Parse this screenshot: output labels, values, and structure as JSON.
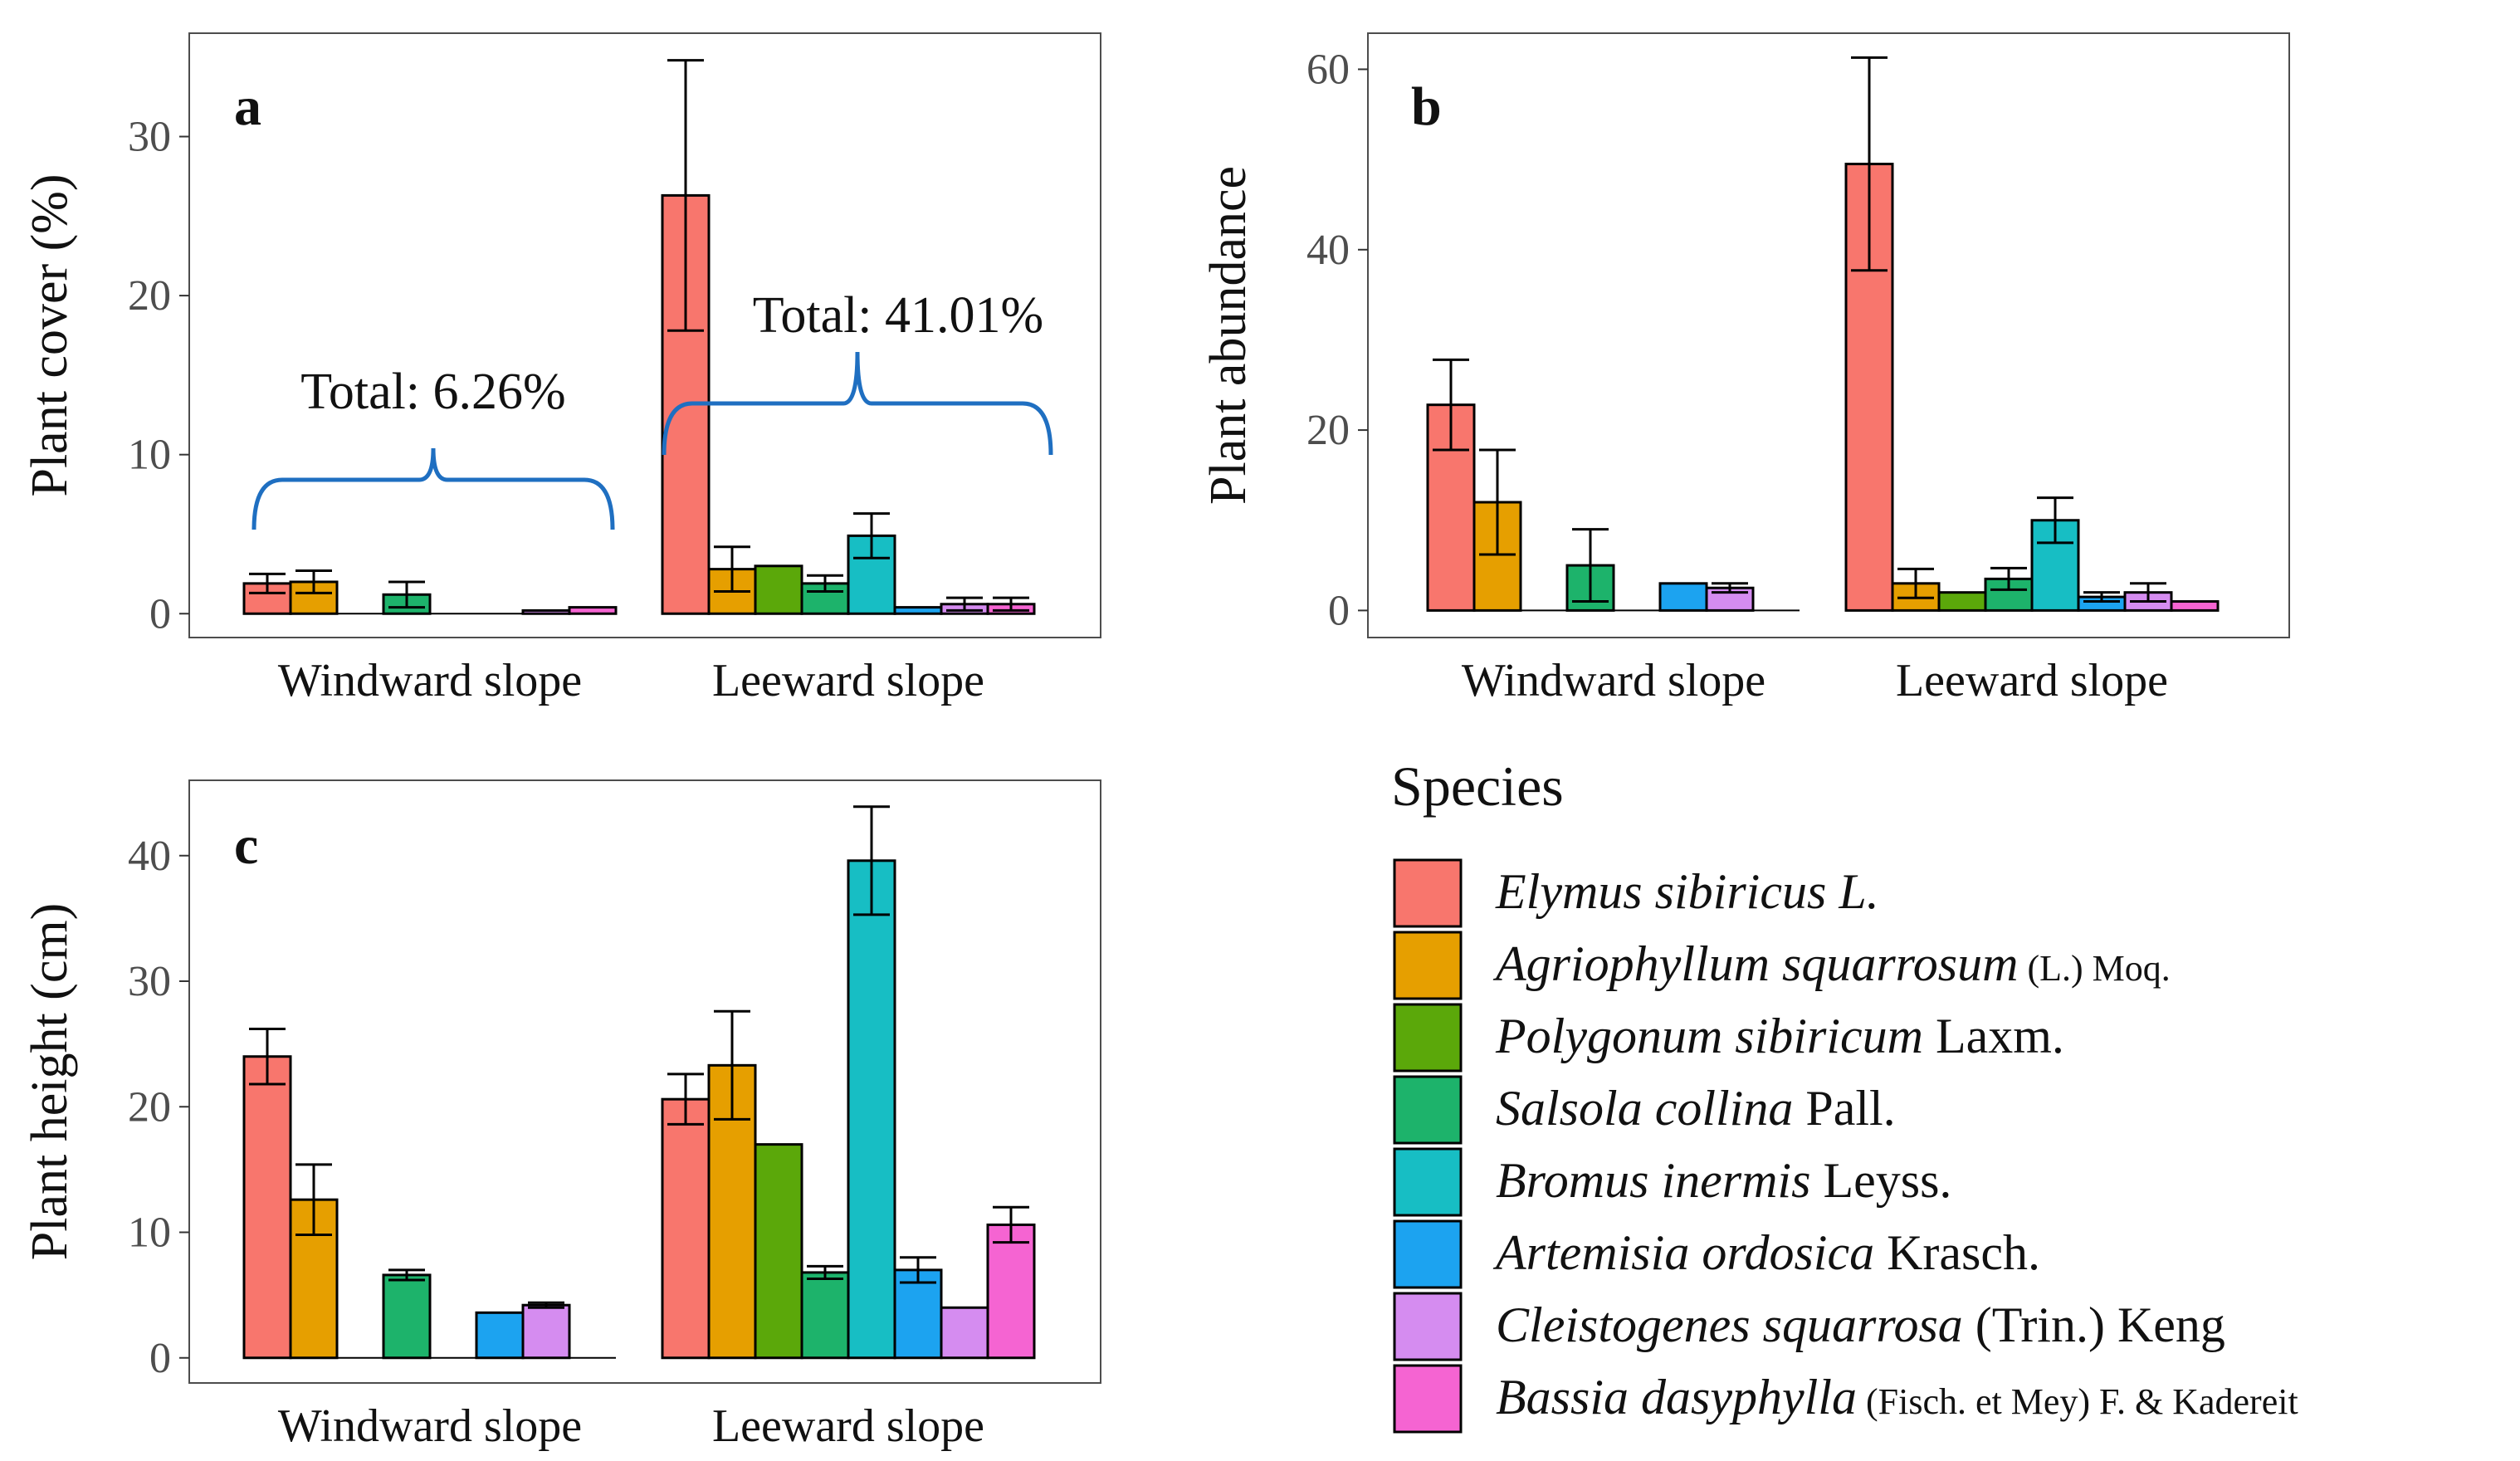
{
  "species": [
    {
      "italic": "Elymus sibiricus L.",
      "rest": "",
      "rest_small": false,
      "color": "#F8766D"
    },
    {
      "italic": "Agriophyllum squarrosum",
      "rest": " (L.) Moq.",
      "rest_small": true,
      "color": "#E69F00"
    },
    {
      "italic": "Polygonum sibiricum",
      "rest": " Laxm.",
      "rest_small": false,
      "color": "#5BA80A"
    },
    {
      "italic": "Salsola collina",
      "rest": " Pall.",
      "rest_small": false,
      "color": "#1DB36B"
    },
    {
      "italic": "Bromus inermis",
      "rest": " Leyss.",
      "rest_small": false,
      "color": "#17BEC4"
    },
    {
      "italic": "Artemisia ordosica",
      "rest": " Krasch.",
      "rest_small": false,
      "color": "#1CA3F0"
    },
    {
      "italic": "Cleistogenes squarrosa",
      "rest": " (Trin.) Keng",
      "rest_small": false,
      "color": "#D58CF0"
    },
    {
      "italic": "Bassia dasyphylla",
      "rest": " (Fisch. et Mey) F. & Kadereit",
      "rest_small": true,
      "color": "#F564D2"
    }
  ],
  "legend": {
    "title": "Species"
  },
  "chart_data": [
    {
      "panel": "a",
      "type": "bar",
      "ylabel": "Plant cover (%)",
      "ylim": [
        -1.5,
        36.5
      ],
      "yticks": [
        0,
        10,
        20,
        30
      ],
      "categories": [
        "Windward slope",
        "Leeward slope"
      ],
      "series": [
        {
          "values": [
            1.9,
            26.3
          ],
          "err": [
            0.6,
            8.5
          ]
        },
        {
          "values": [
            2.0,
            2.8
          ],
          "err": [
            0.7,
            1.4
          ]
        },
        {
          "values": [
            0,
            3.0
          ],
          "err": [
            0,
            0
          ]
        },
        {
          "values": [
            1.2,
            1.9
          ],
          "err": [
            0.8,
            0.5
          ]
        },
        {
          "values": [
            0,
            4.9
          ],
          "err": [
            0,
            1.4
          ]
        },
        {
          "values": [
            0,
            0.4
          ],
          "err": [
            0,
            0
          ]
        },
        {
          "values": [
            0.2,
            0.6
          ],
          "err": [
            0,
            0.4
          ]
        },
        {
          "values": [
            0.4,
            0.6
          ],
          "err": [
            0,
            0.4
          ]
        }
      ],
      "annotations": [
        "Total: 6.26%",
        "Total: 41.01%"
      ]
    },
    {
      "panel": "b",
      "type": "bar",
      "ylabel": "Plant abundance",
      "ylim": [
        -3,
        64
      ],
      "yticks": [
        0,
        20,
        40,
        60
      ],
      "categories": [
        "Windward slope",
        "Leeward slope"
      ],
      "series": [
        {
          "values": [
            22.8,
            49.5
          ],
          "err": [
            5.0,
            11.8
          ]
        },
        {
          "values": [
            12.0,
            3.0
          ],
          "err": [
            5.8,
            1.6
          ]
        },
        {
          "values": [
            0,
            2.0
          ],
          "err": [
            0,
            0
          ]
        },
        {
          "values": [
            5.0,
            3.5
          ],
          "err": [
            4.0,
            1.2
          ]
        },
        {
          "values": [
            0,
            10.0
          ],
          "err": [
            0,
            2.5
          ]
        },
        {
          "values": [
            3.0,
            1.5
          ],
          "err": [
            0,
            0.5
          ]
        },
        {
          "values": [
            2.5,
            2.0
          ],
          "err": [
            0.5,
            1.0
          ]
        },
        {
          "values": [
            0,
            1.0
          ],
          "err": [
            0,
            0
          ]
        }
      ]
    },
    {
      "panel": "c",
      "type": "bar",
      "ylabel": "Plant height (cm)",
      "ylim": [
        -2,
        46
      ],
      "yticks": [
        0,
        10,
        20,
        30,
        40
      ],
      "categories": [
        "Windward slope",
        "Leeward slope"
      ],
      "series": [
        {
          "values": [
            24.0,
            20.6
          ],
          "err": [
            2.2,
            2.0
          ]
        },
        {
          "values": [
            12.6,
            23.3
          ],
          "err": [
            2.8,
            4.3
          ]
        },
        {
          "values": [
            0,
            17.0
          ],
          "err": [
            0,
            0
          ]
        },
        {
          "values": [
            6.6,
            6.8
          ],
          "err": [
            0.4,
            0.5
          ]
        },
        {
          "values": [
            0,
            39.6
          ],
          "err": [
            0,
            4.3
          ]
        },
        {
          "values": [
            3.6,
            7.0
          ],
          "err": [
            0,
            1.0
          ]
        },
        {
          "values": [
            4.2,
            4.0
          ],
          "err": [
            0.2,
            0
          ]
        },
        {
          "values": [
            0,
            10.6
          ],
          "err": [
            0,
            1.4
          ]
        }
      ]
    }
  ]
}
